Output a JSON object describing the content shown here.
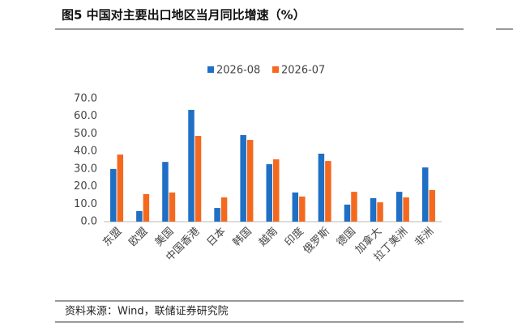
{
  "header": {
    "title": "图5  中国对主要出口地区当月同比增速（%）"
  },
  "chart_data": {
    "type": "bar",
    "categories": [
      "东盟",
      "欧盟",
      "美国",
      "中国香港",
      "日本",
      "韩国",
      "越南",
      "印度",
      "俄罗斯",
      "德国",
      "加拿大",
      "拉丁美洲",
      "非洲"
    ],
    "series": [
      {
        "name": "2026-08",
        "color": "#1f6fc5",
        "values": [
          30,
          6,
          34,
          63.6,
          7.8,
          49.3,
          32.7,
          16.6,
          38.7,
          9.7,
          13.4,
          17,
          30.9
        ]
      },
      {
        "name": "2026-07",
        "color": "#f5691e",
        "values": [
          38.2,
          15.7,
          16.6,
          48.8,
          13.8,
          46.5,
          35.5,
          14.3,
          34.5,
          17,
          11,
          13.8,
          18
        ]
      }
    ],
    "ylim": [
      0,
      70
    ],
    "yticks": [
      {
        "value": 0,
        "label": "0.0"
      },
      {
        "value": 10,
        "label": "10.0"
      },
      {
        "value": 20,
        "label": "20.0"
      },
      {
        "value": 30,
        "label": "30.0"
      },
      {
        "value": 40,
        "label": "40.0"
      },
      {
        "value": 50,
        "label": "50.0"
      },
      {
        "value": 60,
        "label": "60.0"
      },
      {
        "value": 70,
        "label": "70.0"
      }
    ],
    "grid": false,
    "legend": "top"
  },
  "footer": {
    "source": "资料来源：Wind，联储证券研究院"
  }
}
